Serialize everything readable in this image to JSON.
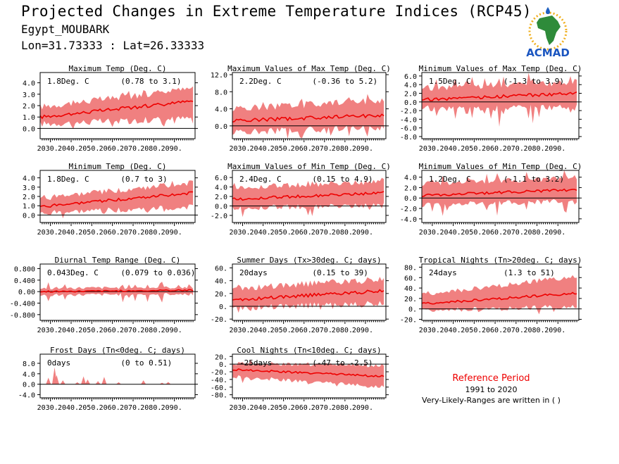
{
  "header": {
    "title": "Projected Changes in Extreme Temperature Indices (RCP45)",
    "station": "Egypt_MOUBARK",
    "coords": "Lon=31.73333 : Lat=26.33333",
    "logo_text": "ACMAD"
  },
  "reference": {
    "title": "Reference Period",
    "years": "1991 to 2020",
    "note": "Very-Likely-Ranges are written in ( )"
  },
  "colors": {
    "band": "#f08080",
    "line": "#ee0000",
    "zero": "#000000",
    "ref_title": "#ee0000"
  },
  "chart_data": [
    {
      "type": "area",
      "title": "Maximum Temp (Deg. C)",
      "change": "1.8Deg. C",
      "range": "(0.78 to 3.1)",
      "ylim": [
        -0.9,
        4.9
      ],
      "yticks": [
        0,
        1,
        2,
        3,
        4
      ],
      "ytick_labels": [
        "0.0",
        "1.0",
        "2.0",
        "3.0",
        "4.0"
      ],
      "xticks": [
        2030,
        2040,
        2050,
        2060,
        2070,
        2080,
        2090
      ],
      "xtick_labels": [
        "2030.",
        "2040.",
        "2050.",
        "2060.",
        "2070.",
        "2080.",
        "2090."
      ],
      "x_range": [
        2025,
        2100
      ],
      "start": 1.0,
      "end": 2.4,
      "band_low": [
        0.4,
        0.9
      ],
      "band_high": [
        1.9,
        3.5
      ],
      "noise": 0.3,
      "spike": 0.5
    },
    {
      "type": "area",
      "title": "Maximum Values of Max Temp (Deg. C)",
      "change": "2.2Deg. C",
      "range": "(-0.36 to 5.2)",
      "ylim": [
        -3,
        12.5
      ],
      "yticks": [
        0,
        4,
        8,
        12
      ],
      "ytick_labels": [
        "0.0",
        "4.0",
        "8.0",
        "12.0"
      ],
      "xticks": [
        2030,
        2040,
        2050,
        2060,
        2070,
        2080,
        2090
      ],
      "xtick_labels": [
        "2030.",
        "2040.",
        "2050.",
        "2060.",
        "2070.",
        "2080.",
        "2090."
      ],
      "x_range": [
        2025,
        2100
      ],
      "start": 1.2,
      "end": 2.5,
      "band_low": [
        -1.5,
        -0.4
      ],
      "band_high": [
        4.0,
        6.0
      ],
      "noise": 0.8,
      "spike": 2.5
    },
    {
      "type": "area",
      "title": "Minimum Values of Max Temp (Deg. C)",
      "change": "1.5Deg. C",
      "range": "(-1.3 to 3.9)",
      "ylim": [
        -8.5,
        6.8
      ],
      "yticks": [
        -8,
        -6,
        -4,
        -2,
        0,
        2,
        4,
        6
      ],
      "ytick_labels": [
        "-8.0",
        "-6.0",
        "-4.0",
        "-2.0",
        "0.0",
        "2.0",
        "4.0",
        "6.0"
      ],
      "xticks": [
        2030,
        2040,
        2050,
        2060,
        2070,
        2080,
        2090
      ],
      "xtick_labels": [
        "2030.",
        "2040.",
        "2050.",
        "2060.",
        "2070.",
        "2080.",
        "2090."
      ],
      "x_range": [
        2025,
        2100
      ],
      "start": 0.5,
      "end": 2.0,
      "band_low": [
        -1.5,
        -1.2
      ],
      "band_high": [
        3.2,
        4.5
      ],
      "noise": 0.7,
      "spike": 4.0
    },
    {
      "type": "area",
      "title": "Minimum Temp (Deg. C)",
      "change": "1.8Deg. C",
      "range": "(0.7 to 3)",
      "ylim": [
        -0.8,
        4.8
      ],
      "yticks": [
        0,
        1,
        2,
        3,
        4
      ],
      "ytick_labels": [
        "0.0",
        "1.0",
        "2.0",
        "3.0",
        "4.0"
      ],
      "xticks": [
        2030,
        2040,
        2050,
        2060,
        2070,
        2080,
        2090
      ],
      "xtick_labels": [
        "2030.",
        "2040.",
        "2050.",
        "2060.",
        "2070.",
        "2080.",
        "2090."
      ],
      "x_range": [
        2025,
        2100
      ],
      "start": 0.9,
      "end": 2.4,
      "band_low": [
        0.2,
        0.9
      ],
      "band_high": [
        1.8,
        3.5
      ],
      "noise": 0.3,
      "spike": 0.6
    },
    {
      "type": "area",
      "title": "Maximum Values of Min Temp (Deg. C)",
      "change": "2.4Deg. C",
      "range": "(0.15 to 4.9)",
      "ylim": [
        -3.5,
        7.5
      ],
      "yticks": [
        -2,
        0,
        2,
        4,
        6
      ],
      "ytick_labels": [
        "-2.0",
        "0.0",
        "2.0",
        "4.0",
        "6.0"
      ],
      "xticks": [
        2030,
        2040,
        2050,
        2060,
        2070,
        2080,
        2090
      ],
      "xtick_labels": [
        "2030.",
        "2040.",
        "2050.",
        "2060.",
        "2070.",
        "2080.",
        "2090."
      ],
      "x_range": [
        2025,
        2100
      ],
      "start": 1.4,
      "end": 2.8,
      "band_low": [
        -0.5,
        0.2
      ],
      "band_high": [
        3.8,
        5.2
      ],
      "noise": 0.6,
      "spike": 1.8
    },
    {
      "type": "area",
      "title": "Minimum Values of Min Temp (Deg. C)",
      "change": "1.2Deg. C",
      "range": "(-1.1 to 3.2)",
      "ylim": [
        -4.7,
        5.3
      ],
      "yticks": [
        -4,
        -2,
        0,
        2,
        4
      ],
      "ytick_labels": [
        "-4.0",
        "-2.0",
        "0.0",
        "2.0",
        "4.0"
      ],
      "xticks": [
        2030,
        2040,
        2050,
        2060,
        2070,
        2080,
        2090
      ],
      "xtick_labels": [
        "2030.",
        "2040.",
        "2050.",
        "2060.",
        "2070.",
        "2080.",
        "2090."
      ],
      "x_range": [
        2025,
        2100
      ],
      "start": 0.5,
      "end": 1.6,
      "band_low": [
        -1.3,
        -0.6
      ],
      "band_high": [
        2.8,
        3.8
      ],
      "noise": 0.5,
      "spike": 2.5
    },
    {
      "type": "area",
      "title": "Diurnal Temp Range (Deg. C)",
      "change": "0.043Deg. C",
      "range": "(0.079 to 0.036)",
      "ylim": [
        -1.0,
        0.96
      ],
      "yticks": [
        -0.8,
        -0.4,
        0,
        0.4,
        0.8
      ],
      "ytick_labels": [
        "-0.800",
        "-0.400",
        "0.00",
        "0.400",
        "0.800"
      ],
      "xticks": [
        2030,
        2040,
        2050,
        2060,
        2070,
        2080,
        2090
      ],
      "xtick_labels": [
        "2030.",
        "2040.",
        "2050.",
        "2060.",
        "2070.",
        "2080.",
        "2090."
      ],
      "x_range": [
        2025,
        2100
      ],
      "start": 0.0,
      "end": 0.05,
      "band_low": [
        -0.12,
        -0.08
      ],
      "band_high": [
        0.12,
        0.15
      ],
      "noise": 0.05,
      "spike": 0.4
    },
    {
      "type": "area",
      "title": "Summer Days (Tx>30deg. C; days)",
      "change": "20days",
      "range": "(0.15 to 39)",
      "ylim": [
        -22,
        66
      ],
      "yticks": [
        -20,
        0,
        20,
        40,
        60
      ],
      "ytick_labels": [
        "-20.",
        "0.",
        "20.",
        "40.",
        "60."
      ],
      "xticks": [
        2030,
        2040,
        2050,
        2060,
        2070,
        2080,
        2090
      ],
      "xtick_labels": [
        "2030.",
        "2040.",
        "2050.",
        "2060.",
        "2070.",
        "2080.",
        "2090."
      ],
      "x_range": [
        2025,
        2100
      ],
      "start": 10,
      "end": 24,
      "band_low": [
        -2,
        4
      ],
      "band_high": [
        28,
        42
      ],
      "noise": 5,
      "spike": 14
    },
    {
      "type": "area",
      "title": "Tropical Nights (Tn>20deg. C; days)",
      "change": "24days",
      "range": "(1.3 to 51)",
      "ylim": [
        -22,
        86
      ],
      "yticks": [
        -20,
        0,
        20,
        40,
        60,
        80
      ],
      "ytick_labels": [
        "-20.",
        "0.",
        "20.",
        "40.",
        "60.",
        "80."
      ],
      "xticks": [
        2030,
        2040,
        2050,
        2060,
        2070,
        2080,
        2090
      ],
      "xtick_labels": [
        "2030.",
        "2040.",
        "2050.",
        "2060.",
        "2070.",
        "2080.",
        "2090."
      ],
      "x_range": [
        2025,
        2100
      ],
      "start": 10,
      "end": 30,
      "band_low": [
        -2,
        4
      ],
      "band_high": [
        28,
        62
      ],
      "noise": 5,
      "spike": 14
    },
    {
      "type": "area",
      "title": "Frost Days (Tn<0deg. C; days)",
      "change": "0days",
      "range": "(0 to 0.51)",
      "ylim": [
        -5.2,
        11.5
      ],
      "yticks": [
        -4,
        0,
        4,
        8
      ],
      "ytick_labels": [
        "-4.0",
        "0.0",
        "4.0",
        "8.0"
      ],
      "xticks": [
        2030,
        2040,
        2050,
        2060,
        2070,
        2080,
        2090
      ],
      "xtick_labels": [
        "2030.",
        "2040.",
        "2050.",
        "2060.",
        "2070.",
        "2080.",
        "2090."
      ],
      "x_range": [
        2025,
        2100
      ],
      "start": 0,
      "end": 0,
      "band_low": [
        0,
        0
      ],
      "band_high": [
        0,
        0
      ],
      "noise": 0,
      "spike": 0,
      "spikes": [
        {
          "x": 2029,
          "h": 2.5
        },
        {
          "x": 2032,
          "h": 6.5
        },
        {
          "x": 2033,
          "h": 3.5
        },
        {
          "x": 2036,
          "h": 1.5
        },
        {
          "x": 2043,
          "h": 0.8
        },
        {
          "x": 2046,
          "h": 3.0
        },
        {
          "x": 2048,
          "h": 1.8
        },
        {
          "x": 2053,
          "h": 1.2
        },
        {
          "x": 2056,
          "h": 2.8
        },
        {
          "x": 2063,
          "h": 0.8
        },
        {
          "x": 2075,
          "h": 1.5
        },
        {
          "x": 2084,
          "h": 0.6
        },
        {
          "x": 2087,
          "h": 0.9
        }
      ]
    },
    {
      "type": "area",
      "title": "Cool Nights (Tn<10deg. C; days)",
      "change": "-25days",
      "range": "(-47 to -2.5)",
      "ylim": [
        -88,
        26
      ],
      "yticks": [
        -80,
        -60,
        -40,
        -20,
        0,
        20
      ],
      "ytick_labels": [
        "-80.",
        "-60.",
        "-40.",
        "-20.",
        "0.",
        "20."
      ],
      "xticks": [
        2030,
        2040,
        2050,
        2060,
        2070,
        2080,
        2090
      ],
      "xtick_labels": [
        "2030.",
        "2040.",
        "2050.",
        "2060.",
        "2070.",
        "2080.",
        "2090."
      ],
      "x_range": [
        2025,
        2100
      ],
      "start": -14,
      "end": -32,
      "band_low": [
        -32,
        -60
      ],
      "band_high": [
        2,
        -4
      ],
      "noise": 5,
      "spike": 14
    }
  ]
}
